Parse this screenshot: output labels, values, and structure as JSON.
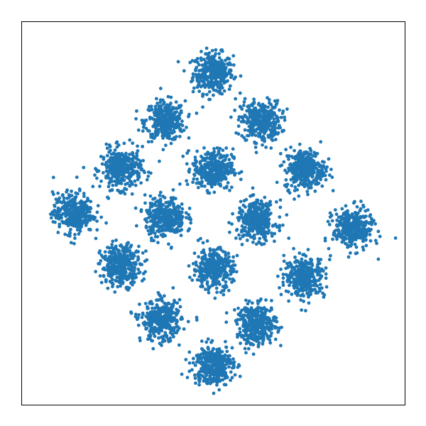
{
  "chart_data": {
    "type": "scatter",
    "title": "",
    "xlabel": "",
    "ylabel": "",
    "axis_ticks_visible": false,
    "grid": false,
    "legend": "none",
    "xlim": [
      -4.8,
      4.8
    ],
    "ylim": [
      -4.8,
      4.8
    ],
    "marker_color": "#1f77b4",
    "marker_shape": "circle",
    "cluster_spread_sd": 0.25,
    "points_per_cluster": 350,
    "clusters": [
      {
        "center": [
          0.0,
          3.5
        ]
      },
      {
        "center": [
          -1.2,
          2.3
        ]
      },
      {
        "center": [
          1.2,
          2.3
        ]
      },
      {
        "center": [
          -2.3,
          1.1
        ]
      },
      {
        "center": [
          0.0,
          1.1
        ]
      },
      {
        "center": [
          2.3,
          1.1
        ]
      },
      {
        "center": [
          -3.5,
          0.0
        ]
      },
      {
        "center": [
          -1.2,
          -0.1
        ]
      },
      {
        "center": [
          1.1,
          -0.2
        ]
      },
      {
        "center": [
          3.5,
          -0.4
        ]
      },
      {
        "center": [
          -2.3,
          -1.3
        ]
      },
      {
        "center": [
          0.0,
          -1.4
        ]
      },
      {
        "center": [
          2.3,
          -1.6
        ]
      },
      {
        "center": [
          -1.3,
          -2.7
        ]
      },
      {
        "center": [
          1.1,
          -2.8
        ]
      },
      {
        "center": [
          0.0,
          -3.8
        ]
      }
    ]
  }
}
